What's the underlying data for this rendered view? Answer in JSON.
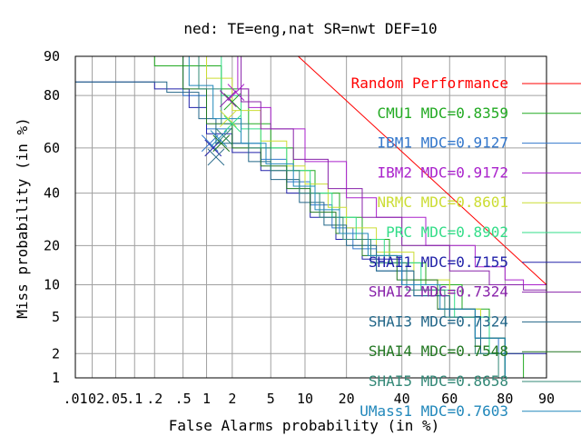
{
  "chart_data": {
    "type": "line",
    "subtype": "DET",
    "title": "ned: TE=eng,nat SR=nwt DEF=10",
    "xlabel": "False Alarms probability (in %)",
    "ylabel": "Miss probability (in %)",
    "xlim": [
      0.01,
      90
    ],
    "ylim": [
      1,
      90
    ],
    "xscale": "probit",
    "yscale": "probit",
    "grid": true,
    "legend_position": "right",
    "x_ticks": [
      {
        "value": 0.01,
        "label": ".01"
      },
      {
        "value": 0.02,
        "label": ".02"
      },
      {
        "value": 0.05,
        "label": ".05"
      },
      {
        "value": 0.1,
        "label": ".1"
      },
      {
        "value": 0.2,
        "label": ".2"
      },
      {
        "value": 0.5,
        "label": ".5"
      },
      {
        "value": 1,
        "label": "1"
      },
      {
        "value": 2,
        "label": "2"
      },
      {
        "value": 5,
        "label": "5"
      },
      {
        "value": 10,
        "label": "10"
      },
      {
        "value": 20,
        "label": "20"
      },
      {
        "value": 40,
        "label": "40"
      },
      {
        "value": 60,
        "label": "60"
      },
      {
        "value": 80,
        "label": "80"
      },
      {
        "value": 90,
        "label": "90"
      }
    ],
    "y_ticks": [
      {
        "value": 1,
        "label": "1"
      },
      {
        "value": 2,
        "label": "2"
      },
      {
        "value": 5,
        "label": "5"
      },
      {
        "value": 10,
        "label": "10"
      },
      {
        "value": 20,
        "label": "20"
      },
      {
        "value": 40,
        "label": "40"
      },
      {
        "value": 60,
        "label": "60"
      },
      {
        "value": 80,
        "label": "80"
      },
      {
        "value": 90,
        "label": "90"
      }
    ],
    "series": [
      {
        "name": "Random Performance",
        "color": "#ff0000",
        "dash": false,
        "points": [
          [
            8.8,
            90
          ],
          [
            90,
            10
          ]
        ]
      },
      {
        "name": "CMU1 MDC=0.8359",
        "color": "#22aa22",
        "mdc": [
          2,
          78
        ],
        "points": [
          [
            0.02,
            90
          ],
          [
            0.2,
            88
          ],
          [
            1.5,
            82
          ],
          [
            3,
            70
          ],
          [
            5,
            60
          ],
          [
            8,
            50
          ],
          [
            12,
            40
          ],
          [
            18,
            30
          ],
          [
            25,
            22
          ],
          [
            35,
            15
          ],
          [
            50,
            10
          ],
          [
            65,
            6
          ],
          [
            75,
            3
          ],
          [
            80,
            2
          ],
          [
            85,
            1
          ]
        ]
      },
      {
        "name": "IBM1 MDC=0.9127",
        "color": "#3377cc",
        "mdc": [
          1.1,
          62
        ],
        "points": [
          [
            0.05,
            90
          ],
          [
            0.5,
            80
          ],
          [
            1,
            68
          ],
          [
            2,
            62
          ],
          [
            4,
            55
          ],
          [
            7,
            45
          ],
          [
            11,
            35
          ],
          [
            16,
            26
          ],
          [
            22,
            19
          ],
          [
            30,
            13
          ],
          [
            45,
            8
          ],
          [
            60,
            5
          ],
          [
            70,
            3
          ],
          [
            78,
            2
          ],
          [
            80,
            1
          ]
        ]
      },
      {
        "name": "IBM2 MDC=0.9172",
        "color": "#aa22cc",
        "mdc": [
          2.2,
          81
        ],
        "points": [
          [
            2,
            90
          ],
          [
            2.3,
            82
          ],
          [
            3,
            76
          ],
          [
            5,
            68
          ],
          [
            10,
            54
          ],
          [
            20,
            38
          ],
          [
            30,
            30
          ],
          [
            50,
            20
          ],
          [
            70,
            14
          ],
          [
            80,
            11
          ],
          [
            85,
            10
          ],
          [
            90,
            8
          ]
        ]
      },
      {
        "name": "NRMC MDC=0.8601",
        "color": "#ccdd33",
        "mdc": [
          1.8,
          72
        ],
        "points": [
          [
            0.5,
            90
          ],
          [
            1,
            85
          ],
          [
            2,
            75
          ],
          [
            4,
            63
          ],
          [
            7,
            52
          ],
          [
            10,
            44
          ],
          [
            15,
            34
          ],
          [
            20,
            26
          ],
          [
            30,
            18
          ],
          [
            45,
            11
          ],
          [
            60,
            6
          ],
          [
            72,
            3
          ],
          [
            80,
            1
          ]
        ]
      },
      {
        "name": "PRC MDC=0.8902",
        "color": "#33dd88",
        "mdc": [
          2,
          70
        ],
        "points": [
          [
            1,
            90
          ],
          [
            1.5,
            80
          ],
          [
            2.5,
            68
          ],
          [
            4,
            60
          ],
          [
            7,
            50
          ],
          [
            11,
            40
          ],
          [
            16,
            30
          ],
          [
            23,
            22
          ],
          [
            33,
            15
          ],
          [
            48,
            9
          ],
          [
            62,
            5
          ],
          [
            75,
            2
          ],
          [
            80,
            1
          ]
        ]
      },
      {
        "name": "SHAI1 MDC=0.7155",
        "color": "#2222aa",
        "mdc": [
          1.2,
          60
        ],
        "points": [
          [
            0.01,
            84
          ],
          [
            0.2,
            82
          ],
          [
            0.6,
            76
          ],
          [
            1,
            66
          ],
          [
            2,
            58
          ],
          [
            4,
            50
          ],
          [
            7,
            40
          ],
          [
            11,
            30
          ],
          [
            17,
            22
          ],
          [
            25,
            16
          ],
          [
            40,
            10
          ],
          [
            55,
            6
          ],
          [
            70,
            3
          ],
          [
            80,
            2
          ],
          [
            90,
            1
          ]
        ]
      },
      {
        "name": "SHAI2 MDC=0.7324",
        "color": "#8822aa",
        "mdc": [
          1.8,
          79
        ],
        "points": [
          [
            2,
            90
          ],
          [
            2.5,
            78
          ],
          [
            4,
            68
          ],
          [
            8,
            55
          ],
          [
            15,
            42
          ],
          [
            25,
            30
          ],
          [
            40,
            20
          ],
          [
            60,
            13
          ],
          [
            75,
            10
          ],
          [
            85,
            9
          ],
          [
            90,
            8
          ]
        ]
      },
      {
        "name": "SHAI3 MDC=0.7324",
        "color": "#226688",
        "mdc": [
          1.3,
          56
        ],
        "points": [
          [
            0.01,
            84
          ],
          [
            0.3,
            81
          ],
          [
            0.8,
            72
          ],
          [
            1.3,
            62
          ],
          [
            3,
            54
          ],
          [
            5,
            46
          ],
          [
            9,
            36
          ],
          [
            14,
            27
          ],
          [
            20,
            20
          ],
          [
            30,
            13
          ],
          [
            45,
            8
          ],
          [
            60,
            5
          ],
          [
            72,
            2
          ],
          [
            80,
            1
          ]
        ]
      },
      {
        "name": "SHAI4 MDC=0.7548",
        "color": "#227722",
        "mdc": [
          1.5,
          62
        ],
        "points": [
          [
            0.1,
            90
          ],
          [
            0.5,
            82
          ],
          [
            1,
            70
          ],
          [
            2,
            60
          ],
          [
            4,
            52
          ],
          [
            7,
            42
          ],
          [
            11,
            32
          ],
          [
            17,
            24
          ],
          [
            25,
            17
          ],
          [
            38,
            11
          ],
          [
            55,
            6
          ],
          [
            70,
            3
          ],
          [
            80,
            1
          ]
        ]
      },
      {
        "name": "SHAI5 MDC=0.8658",
        "color": "#338877",
        "mdc": [
          1.6,
          65
        ],
        "points": [
          [
            0.3,
            90
          ],
          [
            0.8,
            82
          ],
          [
            1.5,
            70
          ],
          [
            3,
            60
          ],
          [
            5,
            50
          ],
          [
            9,
            40
          ],
          [
            13,
            30
          ],
          [
            19,
            22
          ],
          [
            28,
            15
          ],
          [
            42,
            9
          ],
          [
            58,
            5
          ],
          [
            70,
            2
          ],
          [
            78,
            1
          ]
        ]
      },
      {
        "name": "UMass1 MDC=0.7603",
        "color": "#2288bb",
        "mdc": [
          1.4,
          64
        ],
        "points": [
          [
            0.2,
            90
          ],
          [
            0.6,
            83
          ],
          [
            1.2,
            72
          ],
          [
            2.5,
            62
          ],
          [
            4.5,
            53
          ],
          [
            8,
            43
          ],
          [
            12,
            33
          ],
          [
            18,
            24
          ],
          [
            27,
            17
          ],
          [
            40,
            10
          ],
          [
            56,
            6
          ],
          [
            70,
            3
          ],
          [
            80,
            1
          ]
        ]
      }
    ]
  }
}
